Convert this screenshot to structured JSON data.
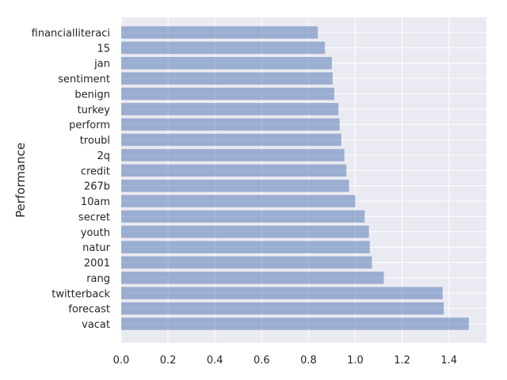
{
  "chart_data": {
    "type": "bar",
    "orientation": "horizontal",
    "ylabel": "Performance",
    "xlabel": "",
    "categories": [
      "vacat",
      "forecast",
      "twitterback",
      "rang",
      "2001",
      "natur",
      "youth",
      "secret",
      "10am",
      "267b",
      "credit",
      "2q",
      "troubl",
      "perform",
      "turkey",
      "benign",
      "sentiment",
      "jan",
      "15",
      "financialliteraci"
    ],
    "values": [
      1.485,
      1.378,
      1.373,
      1.122,
      1.071,
      1.062,
      1.058,
      1.04,
      1.0,
      0.973,
      0.962,
      0.953,
      0.94,
      0.933,
      0.928,
      0.91,
      0.903,
      0.9,
      0.87,
      0.84
    ],
    "xlim": [
      0,
      1.56
    ],
    "xticks": [
      0.0,
      0.2,
      0.4,
      0.6,
      0.8,
      1.0,
      1.2,
      1.4
    ],
    "xtick_labels": [
      "0.0",
      "0.2",
      "0.4",
      "0.6",
      "0.8",
      "1.0",
      "1.2",
      "1.4"
    ],
    "grid": true,
    "colors": {
      "bar": "#4c72b0",
      "plot_background": "#eaeaf2",
      "grid": "#ffffff",
      "text": "#262626"
    }
  }
}
